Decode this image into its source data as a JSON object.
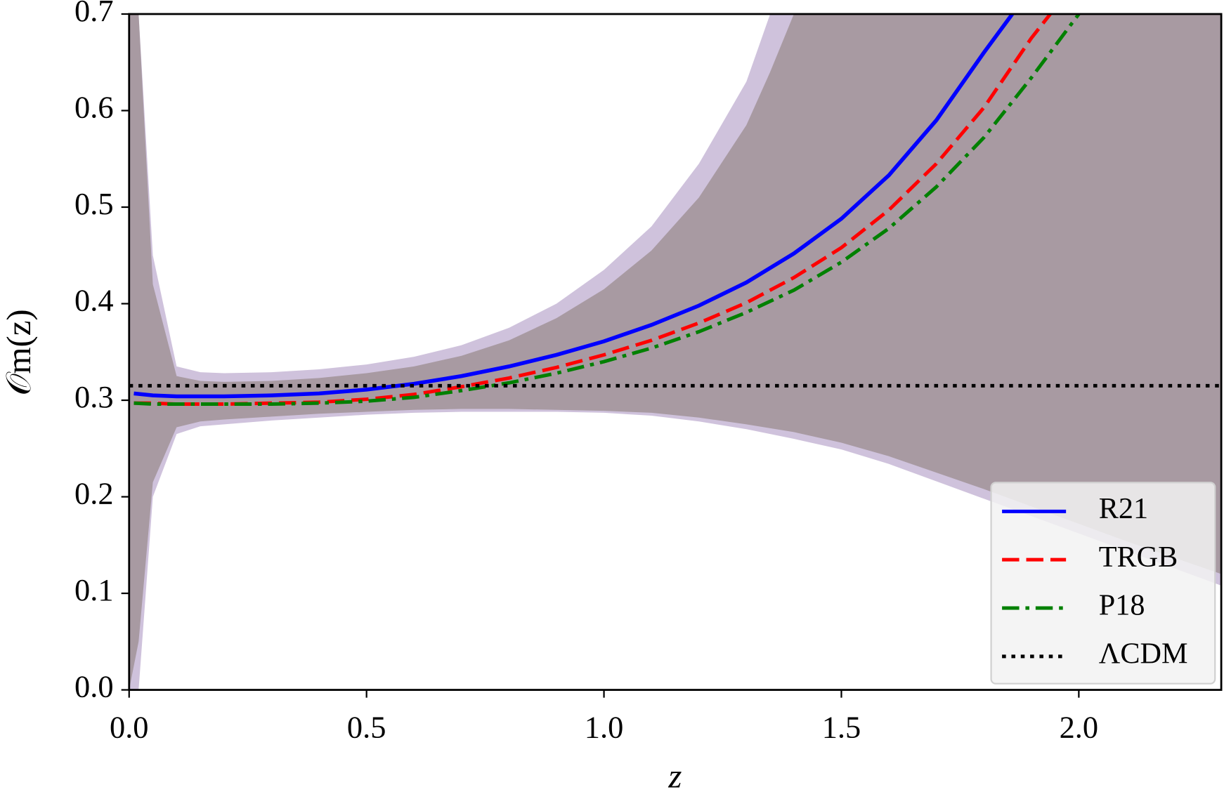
{
  "chart_data": {
    "type": "line",
    "x_label": "z",
    "y_label": "𝒪m(z)",
    "xlim": [
      0,
      2.3
    ],
    "ylim": [
      0,
      0.7
    ],
    "xticks": [
      {
        "value": 0,
        "label": "0.0"
      },
      0.5,
      {
        "value": 1,
        "label": "1.0"
      },
      1.5,
      {
        "value": 2,
        "label": "2.0"
      }
    ],
    "yticks": [
      {
        "value": 0,
        "label": "0.0"
      },
      0.1,
      0.2,
      0.3,
      0.4,
      0.5,
      0.6,
      0.7
    ],
    "legend": "lower right",
    "band_x": [
      0,
      0.02,
      0.05,
      0.1,
      0.15,
      0.2,
      0.3,
      0.4,
      0.5,
      0.6,
      0.7,
      0.8,
      0.9,
      1.0,
      1.1,
      1.2,
      1.3,
      1.35,
      1.4,
      1.5,
      1.6,
      1.7,
      1.8,
      1.9,
      2.0,
      2.1,
      2.2,
      2.3
    ],
    "bands": [
      {
        "color": "#cfc2dc",
        "upper": [
          0.7,
          0.7,
          0.45,
          0.335,
          0.329,
          0.328,
          0.329,
          0.332,
          0.337,
          0.345,
          0.357,
          0.375,
          0.4,
          0.435,
          0.48,
          0.545,
          0.63,
          0.7,
          0.7,
          0.7,
          0.7,
          0.7,
          0.7,
          0.7,
          0.7,
          0.7,
          0.7,
          0.7
        ],
        "lower": [
          0,
          0,
          0.2,
          0.265,
          0.273,
          0.275,
          0.279,
          0.282,
          0.285,
          0.287,
          0.288,
          0.288,
          0.288,
          0.287,
          0.284,
          0.278,
          0.27,
          0.265,
          0.26,
          0.249,
          0.234,
          0.216,
          0.198,
          0.18,
          0.162,
          0.144,
          0.126,
          0.108
        ]
      },
      {
        "color": "#a89aa2",
        "upper": [
          0.7,
          0.7,
          0.42,
          0.325,
          0.32,
          0.319,
          0.32,
          0.323,
          0.328,
          0.335,
          0.346,
          0.362,
          0.385,
          0.415,
          0.455,
          0.51,
          0.585,
          0.64,
          0.7,
          0.7,
          0.7,
          0.7,
          0.7,
          0.7,
          0.7,
          0.7,
          0.7,
          0.7
        ],
        "lower": [
          0,
          0.05,
          0.215,
          0.272,
          0.278,
          0.28,
          0.283,
          0.286,
          0.288,
          0.29,
          0.291,
          0.291,
          0.29,
          0.289,
          0.287,
          0.282,
          0.275,
          0.271,
          0.267,
          0.256,
          0.242,
          0.225,
          0.208,
          0.19,
          0.172,
          0.154,
          0.137,
          0.12
        ]
      }
    ],
    "series": [
      {
        "name": "R21",
        "color": "#0000ff",
        "dash": "solid",
        "x": [
          0.01,
          0.05,
          0.1,
          0.15,
          0.2,
          0.3,
          0.4,
          0.5,
          0.6,
          0.7,
          0.8,
          0.9,
          1.0,
          1.1,
          1.2,
          1.3,
          1.4,
          1.5,
          1.6,
          1.7,
          1.8,
          1.86
        ],
        "values": [
          0.307,
          0.305,
          0.304,
          0.304,
          0.304,
          0.305,
          0.307,
          0.311,
          0.317,
          0.325,
          0.335,
          0.347,
          0.361,
          0.378,
          0.398,
          0.422,
          0.452,
          0.488,
          0.533,
          0.59,
          0.66,
          0.7
        ]
      },
      {
        "name": "TRGB",
        "color": "#ff0000",
        "dash": "dashed",
        "x": [
          0.01,
          0.05,
          0.1,
          0.15,
          0.2,
          0.3,
          0.4,
          0.5,
          0.6,
          0.7,
          0.8,
          0.9,
          1.0,
          1.1,
          1.2,
          1.3,
          1.4,
          1.5,
          1.6,
          1.7,
          1.8,
          1.9,
          1.94
        ],
        "values": [
          0.297,
          0.297,
          0.296,
          0.296,
          0.296,
          0.297,
          0.298,
          0.301,
          0.306,
          0.314,
          0.323,
          0.334,
          0.347,
          0.362,
          0.38,
          0.401,
          0.427,
          0.458,
          0.497,
          0.545,
          0.603,
          0.675,
          0.7
        ]
      },
      {
        "name": "P18",
        "color": "#008000",
        "dash": "dashdot",
        "x": [
          0.01,
          0.05,
          0.1,
          0.15,
          0.2,
          0.3,
          0.4,
          0.5,
          0.6,
          0.7,
          0.8,
          0.9,
          1.0,
          1.1,
          1.2,
          1.3,
          1.4,
          1.5,
          1.6,
          1.7,
          1.8,
          1.9,
          2.0
        ],
        "values": [
          0.297,
          0.296,
          0.296,
          0.296,
          0.296,
          0.296,
          0.297,
          0.299,
          0.303,
          0.31,
          0.318,
          0.328,
          0.34,
          0.354,
          0.371,
          0.391,
          0.414,
          0.443,
          0.478,
          0.521,
          0.572,
          0.634,
          0.7
        ]
      },
      {
        "name": "ΛCDM",
        "color": "#000000",
        "dash": "dotted",
        "x": [
          0,
          2.3
        ],
        "values": [
          0.315,
          0.315
        ]
      }
    ]
  }
}
